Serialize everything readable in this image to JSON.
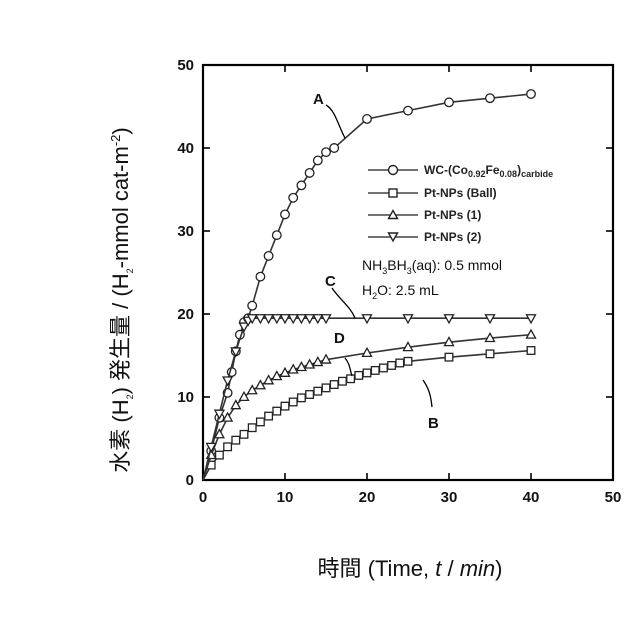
{
  "chart_data": {
    "type": "line",
    "xlabel_prefix": "時間 (Time, ",
    "xlabel_var": "t",
    "xlabel_sep": " / ",
    "xlabel_unit": "min",
    "xlabel_suffix": ")",
    "ylabel_prefix": "水素 (H",
    "ylabel_sub": "2",
    "ylabel_mid": ") 発生量 / (H",
    "ylabel_sub2": "2",
    "ylabel_mid2": "-mmol cat-m",
    "ylabel_sup": "-2",
    "ylabel_suffix": ")",
    "xlim": [
      0,
      50
    ],
    "ylim": [
      0,
      50
    ],
    "xticks": [
      0,
      10,
      20,
      30,
      40,
      50
    ],
    "yticks": [
      0,
      10,
      20,
      30,
      40,
      50
    ],
    "grid": false,
    "legend_position": "right-middle",
    "series": [
      {
        "name": "WC-(Co0.92Fe0.08)carbide",
        "name_parts": [
          "WC-(Co",
          "0.92",
          "Fe",
          "0.08",
          ")",
          "carbide"
        ],
        "marker": "circle",
        "curve_label": "A",
        "x": [
          0,
          1,
          2,
          3,
          3.5,
          4,
          4.5,
          5,
          5.5,
          6,
          7,
          8,
          9,
          10,
          11,
          12,
          13,
          14,
          15,
          16,
          20,
          25,
          30,
          35,
          40
        ],
        "y": [
          0,
          3.5,
          7.5,
          10.5,
          13,
          15.5,
          17.5,
          19,
          19.5,
          21,
          24.5,
          27,
          29.5,
          32,
          34,
          35.5,
          37,
          38.5,
          39.5,
          40,
          43.5,
          44.5,
          45.5,
          46,
          46.5
        ]
      },
      {
        "name": "Pt-NPs (Ball)",
        "marker": "square",
        "curve_label": "B",
        "x": [
          0,
          1,
          2,
          3,
          4,
          5,
          6,
          7,
          8,
          9,
          10,
          11,
          12,
          13,
          14,
          15,
          16,
          17,
          18,
          19,
          20,
          21,
          22,
          23,
          24,
          25,
          30,
          35,
          40
        ],
        "y": [
          0,
          1.8,
          3,
          4,
          4.8,
          5.5,
          6.3,
          7,
          7.7,
          8.3,
          8.9,
          9.4,
          9.9,
          10.3,
          10.7,
          11.1,
          11.5,
          11.9,
          12.2,
          12.6,
          12.9,
          13.2,
          13.5,
          13.8,
          14.1,
          14.3,
          14.8,
          15.2,
          15.6
        ]
      },
      {
        "name": "Pt-NPs (1)",
        "marker": "triangle-up",
        "curve_label": "D",
        "x": [
          0,
          1,
          2,
          3,
          4,
          5,
          6,
          7,
          8,
          9,
          10,
          11,
          12,
          13,
          14,
          15,
          20,
          25,
          30,
          35,
          40
        ],
        "y": [
          0,
          3,
          5.5,
          7.5,
          9,
          10,
          10.8,
          11.4,
          12,
          12.5,
          12.9,
          13.3,
          13.6,
          13.9,
          14.2,
          14.5,
          15.3,
          16,
          16.6,
          17.1,
          17.5
        ]
      },
      {
        "name": "Pt-NPs (2)",
        "marker": "triangle-down",
        "curve_label": "C",
        "x": [
          0,
          1,
          2,
          3,
          4,
          5,
          5.5,
          6,
          7,
          8,
          9,
          10,
          11,
          12,
          13,
          14,
          15,
          20,
          25,
          30,
          35,
          40
        ],
        "y": [
          0,
          4,
          8,
          12,
          15.5,
          18.5,
          19.2,
          19.5,
          19.5,
          19.5,
          19.5,
          19.5,
          19.5,
          19.5,
          19.5,
          19.5,
          19.5,
          19.5,
          19.5,
          19.5,
          19.5,
          19.5
        ]
      }
    ],
    "annotations": {
      "condition1_prefix": "NH",
      "condition1_sub1": "3",
      "condition1_mid": "BH",
      "condition1_sub2": "3",
      "condition1_suffix": "(aq): 0.5 mmol",
      "condition2_prefix": "H",
      "condition2_sub": "2",
      "condition2_suffix": "O: 2.5 mL"
    }
  }
}
